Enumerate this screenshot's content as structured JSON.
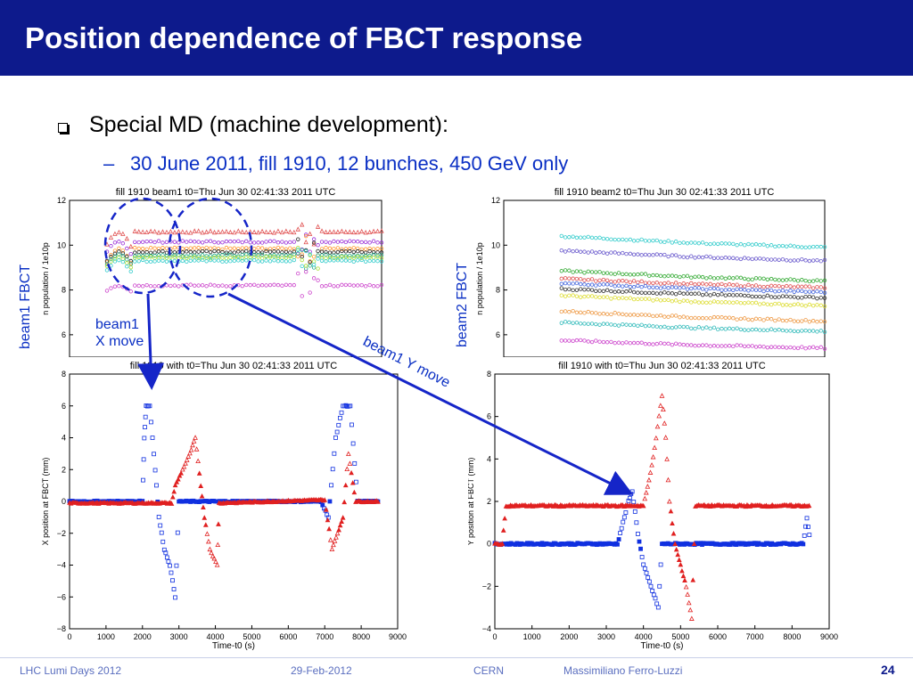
{
  "slide": {
    "title": "Position dependence of FBCT response",
    "bullet": "Special MD (machine development):",
    "sub_bullet": "30 June 2011, fill 1910, 12 bunches, 450 GeV only",
    "sub_dash": "–",
    "page_number": "24"
  },
  "annotations": {
    "beam1_fbct": "beam1 FBCT",
    "beam2_fbct": "beam2 FBCT",
    "beam1_x_move_line1": "beam1",
    "beam1_x_move_line2": "X move",
    "beam1_y_move": "beam1 Y move",
    "arrow_color": "#1525c8"
  },
  "footer": {
    "event": "LHC Lumi Days 2012",
    "date": "29-Feb-2012",
    "venue": "CERN",
    "author": "Massimiliano Ferro-Luzzi"
  },
  "colors": {
    "title_bar": "#0d1a8c",
    "blue_text": "#0a2fc4",
    "beam1_marker": "#1030e0",
    "beam2_marker": "#e02020"
  },
  "chart_data": [
    {
      "id": "beam1_intensity",
      "type": "scatter",
      "title": "fill 1910 beam1 t0=Thu Jun 30 02:41:33 2011 UTC",
      "ylabel": "n population / 1e10p",
      "ylim": [
        5,
        12
      ],
      "yticks": [
        "12",
        "10",
        "8",
        "6"
      ],
      "series": [
        {
          "color": "#e05050",
          "level": 10.6,
          "dip_to": 9.6
        },
        {
          "color": "#9a2fd8",
          "level": 10.15,
          "dip_to": 9.3
        },
        {
          "color": "#ff9933",
          "level": 9.85,
          "dip_to": 8.8
        },
        {
          "color": "#222222",
          "level": 9.7,
          "dip_to": 9.0
        },
        {
          "color": "#22aa88",
          "level": 9.55,
          "dip_to": 8.9
        },
        {
          "color": "#aadd33",
          "level": 9.45,
          "dip_to": 8.7
        },
        {
          "color": "#33cccc",
          "level": 9.3,
          "dip_to": 8.6
        },
        {
          "color": "#cc44cc",
          "level": 8.2,
          "dip_to": 7.8
        }
      ]
    },
    {
      "id": "beam2_intensity",
      "type": "scatter",
      "title": "fill 1910 beam2 t0=Thu Jun 30 02:41:33 2011 UTC",
      "ylabel": "n population / 1e10p",
      "ylim": [
        5,
        12
      ],
      "yticks": [
        "12",
        "10",
        "8",
        "6"
      ],
      "series": [
        {
          "color": "#33cccc",
          "level": 10.4,
          "end": 9.9
        },
        {
          "color": "#6a5acd",
          "level": 9.75,
          "end": 9.3
        },
        {
          "color": "#33aa33",
          "level": 8.85,
          "end": 8.4
        },
        {
          "color": "#e05050",
          "level": 8.5,
          "end": 8.1
        },
        {
          "color": "#4466dd",
          "level": 8.3,
          "end": 7.9
        },
        {
          "color": "#333333",
          "level": 8.05,
          "end": 7.65
        },
        {
          "color": "#dddd33",
          "level": 7.75,
          "end": 7.3
        },
        {
          "color": "#ee9944",
          "level": 7.05,
          "end": 6.6
        },
        {
          "color": "#33bbbb",
          "level": 6.55,
          "end": 6.15
        },
        {
          "color": "#cc44cc",
          "level": 5.75,
          "end": 5.4
        }
      ]
    },
    {
      "id": "x_position",
      "type": "scatter",
      "title": "fill 1910 with t0=Thu Jun 30 02:41:33 2011 UTC",
      "xlabel": "Time-t0 (s)",
      "ylabel": "X position at FBCT (mm)",
      "xlim": [
        0,
        9000
      ],
      "ylim": [
        -8,
        8
      ],
      "xticks": [
        "0",
        "1000",
        "2000",
        "3000",
        "4000",
        "5000",
        "6000",
        "7000",
        "8000",
        "9000"
      ],
      "yticks": [
        "8",
        "6",
        "4",
        "2",
        "0",
        "−2",
        "−4",
        "−6",
        "−8"
      ],
      "series": [
        {
          "name": "beam1",
          "color": "#1030e0",
          "points": [
            [
              0,
              0
            ],
            [
              2000,
              0
            ],
            [
              2050,
              4
            ],
            [
              2100,
              6
            ],
            [
              2200,
              6
            ],
            [
              2350,
              2
            ],
            [
              2450,
              -1
            ],
            [
              2600,
              -3
            ],
            [
              2750,
              -4
            ],
            [
              2900,
              -6
            ],
            [
              3000,
              0
            ],
            [
              6900,
              0
            ],
            [
              7100,
              -1
            ],
            [
              7300,
              4
            ],
            [
              7500,
              6
            ],
            [
              7700,
              6
            ],
            [
              7900,
              0
            ],
            [
              8500,
              0
            ]
          ]
        },
        {
          "name": "beam2",
          "color": "#e02020",
          "points": [
            [
              0,
              -0.1
            ],
            [
              2800,
              -0.1
            ],
            [
              2900,
              1
            ],
            [
              3100,
              2
            ],
            [
              3300,
              3
            ],
            [
              3450,
              4
            ],
            [
              3600,
              1
            ],
            [
              3700,
              -1
            ],
            [
              3850,
              -3
            ],
            [
              4050,
              -4
            ],
            [
              4100,
              -0.1
            ],
            [
              7000,
              0.1
            ],
            [
              7200,
              -3
            ],
            [
              7500,
              -1
            ],
            [
              7650,
              3
            ],
            [
              7850,
              0
            ],
            [
              8500,
              0
            ]
          ]
        }
      ]
    },
    {
      "id": "y_position",
      "type": "scatter",
      "title": "fill 1910 with t0=Thu Jun 30 02:41:33 2011 UTC",
      "xlabel": "Time-t0 (s)",
      "ylabel": "Y position at FBCT (mm)",
      "xlim": [
        0,
        9000
      ],
      "ylim": [
        -4,
        8
      ],
      "xticks": [
        "0",
        "1000",
        "2000",
        "3000",
        "4000",
        "5000",
        "6000",
        "7000",
        "8000",
        "9000"
      ],
      "yticks": [
        "8",
        "6",
        "4",
        "2",
        "0",
        "−2",
        "−4"
      ],
      "series": [
        {
          "name": "beam1",
          "color": "#1030e0",
          "points": [
            [
              0,
              0
            ],
            [
              3300,
              0
            ],
            [
              3450,
              1
            ],
            [
              3600,
              2
            ],
            [
              3700,
              2.5
            ],
            [
              3850,
              0.5
            ],
            [
              4000,
              -1
            ],
            [
              4200,
              -2
            ],
            [
              4400,
              -3
            ],
            [
              4500,
              0
            ],
            [
              8300,
              0
            ],
            [
              8400,
              1.2
            ],
            [
              8500,
              0
            ]
          ]
        },
        {
          "name": "beam2",
          "color": "#e02020",
          "points": [
            [
              0,
              0
            ],
            [
              200,
              0
            ],
            [
              300,
              1.8
            ],
            [
              4000,
              1.8
            ],
            [
              4150,
              3
            ],
            [
              4300,
              4.5
            ],
            [
              4500,
              7
            ],
            [
              4600,
              5
            ],
            [
              4700,
              2
            ],
            [
              4850,
              0
            ],
            [
              5000,
              -1
            ],
            [
              5150,
              -2
            ],
            [
              5300,
              -3.5
            ],
            [
              5400,
              1.8
            ],
            [
              8500,
              1.8
            ]
          ]
        }
      ]
    }
  ]
}
